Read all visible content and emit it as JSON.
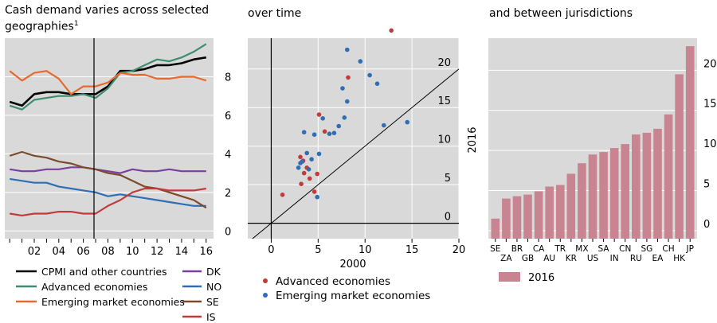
{
  "chart_data": [
    {
      "type": "line",
      "title": "Cash demand varies across selected geographies",
      "title_superscript": "1",
      "x_ticks": [
        "02",
        "04",
        "06",
        "08",
        "10",
        "12",
        "14",
        "16"
      ],
      "y_ticks": [
        "0",
        "2",
        "4",
        "6",
        "8"
      ],
      "ylim": [
        -0.4,
        10
      ],
      "vertical_marker": "2007",
      "series": [
        {
          "name": "CPMI and other countries",
          "color": "#000000",
          "x": [
            2000,
            2001,
            2002,
            2003,
            2004,
            2005,
            2006,
            2007,
            2008,
            2009,
            2010,
            2011,
            2012,
            2013,
            2014,
            2015,
            2016
          ],
          "values": [
            6.7,
            6.5,
            7.1,
            7.2,
            7.2,
            7.1,
            7.1,
            7.1,
            7.5,
            8.3,
            8.3,
            8.4,
            8.6,
            8.6,
            8.7,
            8.9,
            9.0
          ]
        },
        {
          "name": "Advanced economies",
          "color": "#3f8c6e",
          "x": [
            2000,
            2001,
            2002,
            2003,
            2004,
            2005,
            2006,
            2007,
            2008,
            2009,
            2010,
            2011,
            2012,
            2013,
            2014,
            2015,
            2016
          ],
          "values": [
            6.5,
            6.3,
            6.8,
            6.9,
            7.0,
            7.0,
            7.1,
            6.9,
            7.4,
            8.2,
            8.3,
            8.6,
            8.9,
            8.8,
            9.0,
            9.3,
            9.7
          ]
        },
        {
          "name": "Emerging market economies",
          "color": "#e8692e",
          "x": [
            2000,
            2001,
            2002,
            2003,
            2004,
            2005,
            2006,
            2007,
            2008,
            2009,
            2010,
            2011,
            2012,
            2013,
            2014,
            2015,
            2016
          ],
          "values": [
            8.3,
            7.8,
            8.2,
            8.3,
            7.9,
            7.1,
            7.5,
            7.5,
            7.7,
            8.2,
            8.1,
            8.1,
            7.9,
            7.9,
            8.0,
            8.0,
            7.8
          ]
        },
        {
          "name": "DK",
          "color": "#7b3f9e",
          "x": [
            2000,
            2001,
            2002,
            2003,
            2004,
            2005,
            2006,
            2007,
            2008,
            2009,
            2010,
            2011,
            2012,
            2013,
            2014,
            2015,
            2016
          ],
          "values": [
            3.2,
            3.1,
            3.1,
            3.2,
            3.2,
            3.3,
            3.3,
            3.2,
            3.1,
            3.0,
            3.2,
            3.1,
            3.1,
            3.2,
            3.1,
            3.1,
            3.1
          ]
        },
        {
          "name": "NO",
          "color": "#2f6db5",
          "x": [
            2000,
            2001,
            2002,
            2003,
            2004,
            2005,
            2006,
            2007,
            2008,
            2009,
            2010,
            2011,
            2012,
            2013,
            2014,
            2015,
            2016
          ],
          "values": [
            2.7,
            2.6,
            2.5,
            2.5,
            2.3,
            2.2,
            2.1,
            2.0,
            1.8,
            1.9,
            1.8,
            1.7,
            1.6,
            1.5,
            1.4,
            1.3,
            1.3
          ]
        },
        {
          "name": "SE",
          "color": "#7b4a2a",
          "x": [
            2000,
            2001,
            2002,
            2003,
            2004,
            2005,
            2006,
            2007,
            2008,
            2009,
            2010,
            2011,
            2012,
            2013,
            2014,
            2015,
            2016
          ],
          "values": [
            3.9,
            4.1,
            3.9,
            3.8,
            3.6,
            3.5,
            3.3,
            3.2,
            3.0,
            2.9,
            2.6,
            2.3,
            2.2,
            2.0,
            1.8,
            1.6,
            1.2
          ]
        },
        {
          "name": "IS",
          "color": "#c23b3b",
          "x": [
            2000,
            2001,
            2002,
            2003,
            2004,
            2005,
            2006,
            2007,
            2008,
            2009,
            2010,
            2011,
            2012,
            2013,
            2014,
            2015,
            2016
          ],
          "values": [
            0.9,
            0.8,
            0.9,
            0.9,
            1.0,
            1.0,
            0.9,
            0.9,
            1.3,
            1.6,
            2.0,
            2.2,
            2.2,
            2.1,
            2.1,
            2.1,
            2.2
          ]
        }
      ]
    },
    {
      "type": "scatter",
      "title": "over time",
      "xlabel": "2000",
      "ylabel": "2016",
      "xlim": [
        -2.5,
        20
      ],
      "ylim": [
        -2,
        24
      ],
      "x_ticks": [
        "0",
        "5",
        "10",
        "15",
        "20"
      ],
      "y_ticks": [
        "0",
        "5",
        "10",
        "15",
        "20"
      ],
      "reference_line": "45-degree",
      "series": [
        {
          "name": "Advanced economies",
          "color": "#c23b3b",
          "points": [
            [
              1.2,
              3.7
            ],
            [
              3.1,
              8.6
            ],
            [
              3.2,
              5.1
            ],
            [
              3.4,
              8.1
            ],
            [
              3.5,
              6.5
            ],
            [
              3.8,
              7.2
            ],
            [
              4.1,
              5.8
            ],
            [
              4.6,
              4.1
            ],
            [
              4.9,
              6.4
            ],
            [
              5.1,
              14.1
            ],
            [
              5.7,
              11.9
            ],
            [
              8.2,
              18.9
            ],
            [
              12.8,
              25.0
            ]
          ]
        },
        {
          "name": "Emerging market economies",
          "color": "#2f6db5",
          "points": [
            [
              2.9,
              7.2
            ],
            [
              3.1,
              7.8
            ],
            [
              3.3,
              8.0
            ],
            [
              3.5,
              11.8
            ],
            [
              3.8,
              9.1
            ],
            [
              4.0,
              7.0
            ],
            [
              4.3,
              8.3
            ],
            [
              4.6,
              11.5
            ],
            [
              4.9,
              3.4
            ],
            [
              5.1,
              9.0
            ],
            [
              5.5,
              13.6
            ],
            [
              6.2,
              11.6
            ],
            [
              6.7,
              11.7
            ],
            [
              7.2,
              12.6
            ],
            [
              7.6,
              17.5
            ],
            [
              7.8,
              13.7
            ],
            [
              8.1,
              15.8
            ],
            [
              8.1,
              22.5
            ],
            [
              9.5,
              21.0
            ],
            [
              10.5,
              19.2
            ],
            [
              11.3,
              18.1
            ],
            [
              12.0,
              12.7
            ],
            [
              14.5,
              13.1
            ]
          ]
        }
      ]
    },
    {
      "type": "bar",
      "title": "and between jurisdictions",
      "legend": [
        "2016"
      ],
      "color": "#c98491",
      "ylim": [
        -1,
        24
      ],
      "y_ticks": [
        "0",
        "5",
        "10",
        "15",
        "20"
      ],
      "categories": [
        "SE",
        "ZA",
        "BR",
        "GB",
        "CA",
        "AU",
        "TR",
        "KR",
        "MX",
        "US",
        "SA",
        "IN",
        "CN",
        "RU",
        "SG",
        "EA",
        "CH",
        "HK",
        "JP"
      ],
      "values": [
        1.5,
        4.0,
        4.3,
        4.5,
        4.9,
        5.5,
        5.7,
        7.1,
        8.4,
        9.5,
        9.8,
        10.3,
        10.8,
        12.0,
        12.2,
        12.7,
        14.5,
        19.5,
        23.0
      ]
    }
  ]
}
